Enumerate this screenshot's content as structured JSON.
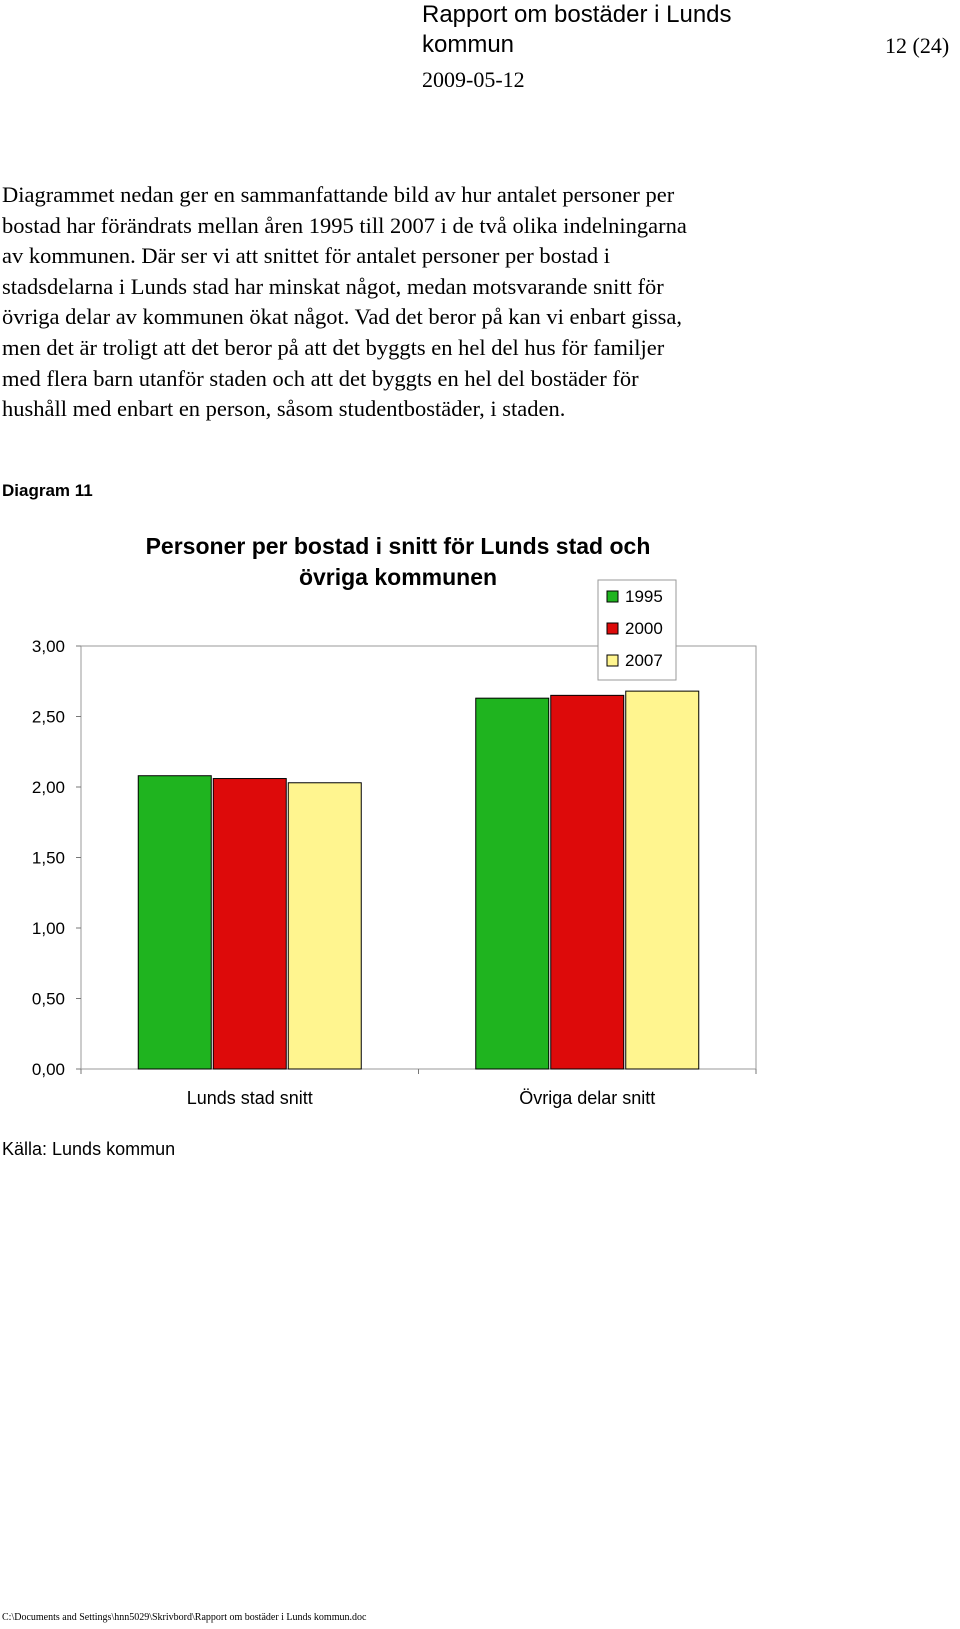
{
  "header": {
    "title": "Rapport om bostäder i Lunds kommun",
    "page": "12 (24)",
    "date": "2009-05-12"
  },
  "body_lines": [
    "Diagrammet nedan ger en sammanfattande bild av hur antalet personer per",
    "bostad har förändrats mellan åren 1995 till 2007 i de två olika indelningarna",
    "av kommunen. Där ser vi att snittet för antalet personer per bostad i",
    "stadsdelarna i Lunds stad har minskat något, medan motsvarande snitt för",
    "övriga delar av kommunen ökat något. Vad det beror på kan vi enbart gissa,",
    "men det är troligt att det beror på att det byggts en hel del hus för familjer",
    "med flera barn utanför staden och att det byggts en hel del bostäder för",
    "hushåll med enbart en person, såsom studentbostäder, i staden."
  ],
  "diagram_label": "Diagram 11",
  "source": "Källa: Lunds kommun",
  "footer_path": "C:\\Documents and Settings\\hnn5029\\Skrivbord\\Rapport om bostäder i Lunds kommun.doc",
  "colors": {
    "1995": "#1fb41f",
    "2000": "#dd0a0a",
    "2007": "#fff58f"
  },
  "chart_data": {
    "type": "bar",
    "title_lines": [
      "Personer per bostad i snitt för Lunds stad och",
      "övriga kommunen"
    ],
    "categories": [
      "Lunds stad snitt",
      "Övriga delar snitt"
    ],
    "series": [
      {
        "name": "1995",
        "values": [
          2.08,
          2.63
        ]
      },
      {
        "name": "2000",
        "values": [
          2.06,
          2.65
        ]
      },
      {
        "name": "2007",
        "values": [
          2.03,
          2.68
        ]
      }
    ],
    "ylim": [
      0,
      3
    ],
    "yticks": [
      "0,00",
      "0,50",
      "1,00",
      "1,50",
      "2,00",
      "2,50",
      "3,00"
    ],
    "grid": false,
    "legend_position": "top-right"
  }
}
